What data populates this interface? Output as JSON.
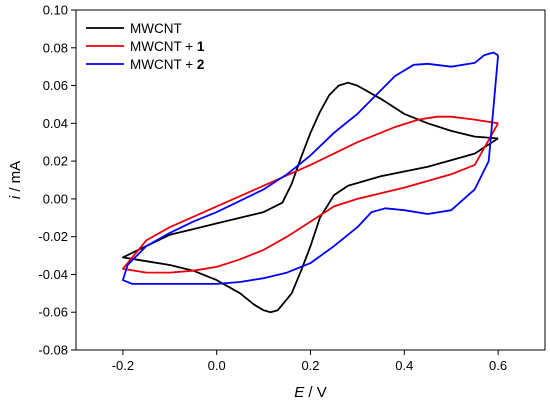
{
  "chart_data": {
    "type": "line",
    "xlim": [
      -0.3,
      0.7
    ],
    "ylim": [
      -0.08,
      0.1
    ],
    "x_ticks": [
      "-0.2",
      "0.0",
      "0.2",
      "0.4",
      "0.6"
    ],
    "x_tick_values": [
      -0.2,
      0.0,
      0.2,
      0.4,
      0.6
    ],
    "y_ticks": [
      "0.10",
      "0.08",
      "0.06",
      "0.04",
      "0.02",
      "0.00",
      "-0.02",
      "-0.04",
      "-0.06",
      "-0.08"
    ],
    "y_tick_values": [
      0.1,
      0.08,
      0.06,
      0.04,
      0.02,
      0.0,
      -0.02,
      -0.04,
      -0.06,
      -0.08
    ],
    "xlabel": {
      "italic": "E",
      "rest": " / V"
    },
    "ylabel": {
      "italic": "i",
      "rest": " / mA"
    },
    "grid": false,
    "legend_position": "top-left",
    "series": [
      {
        "name": "MWCNT",
        "name_plain": "MWCNT",
        "name_bold": "",
        "color": "#000000",
        "points": [
          [
            0.6,
            0.032
          ],
          [
            0.55,
            0.033
          ],
          [
            0.5,
            0.036
          ],
          [
            0.45,
            0.04
          ],
          [
            0.4,
            0.045
          ],
          [
            0.35,
            0.053
          ],
          [
            0.3,
            0.06
          ],
          [
            0.28,
            0.0615
          ],
          [
            0.26,
            0.06
          ],
          [
            0.24,
            0.055
          ],
          [
            0.22,
            0.046
          ],
          [
            0.2,
            0.035
          ],
          [
            0.18,
            0.022
          ],
          [
            0.16,
            0.008
          ],
          [
            0.14,
            -0.002
          ],
          [
            0.1,
            -0.007
          ],
          [
            0.05,
            -0.01
          ],
          [
            0.0,
            -0.013
          ],
          [
            -0.05,
            -0.016
          ],
          [
            -0.1,
            -0.019
          ],
          [
            -0.15,
            -0.025
          ],
          [
            -0.2,
            -0.031
          ],
          [
            -0.15,
            -0.033
          ],
          [
            -0.1,
            -0.035
          ],
          [
            -0.05,
            -0.038
          ],
          [
            0.0,
            -0.043
          ],
          [
            0.05,
            -0.05
          ],
          [
            0.08,
            -0.056
          ],
          [
            0.1,
            -0.059
          ],
          [
            0.115,
            -0.06
          ],
          [
            0.13,
            -0.059
          ],
          [
            0.16,
            -0.05
          ],
          [
            0.18,
            -0.038
          ],
          [
            0.2,
            -0.025
          ],
          [
            0.22,
            -0.01
          ],
          [
            0.25,
            0.002
          ],
          [
            0.28,
            0.007
          ],
          [
            0.35,
            0.012
          ],
          [
            0.45,
            0.017
          ],
          [
            0.55,
            0.024
          ],
          [
            0.6,
            0.032
          ]
        ]
      },
      {
        "name": "MWCNT + 1",
        "name_plain": "MWCNT + ",
        "name_bold": "1",
        "color": "#e8000b",
        "points": [
          [
            0.6,
            0.04
          ],
          [
            0.55,
            0.042
          ],
          [
            0.5,
            0.0435
          ],
          [
            0.47,
            0.0435
          ],
          [
            0.43,
            0.042
          ],
          [
            0.38,
            0.038
          ],
          [
            0.3,
            0.03
          ],
          [
            0.2,
            0.018
          ],
          [
            0.1,
            0.007
          ],
          [
            0.0,
            -0.004
          ],
          [
            -0.1,
            -0.015
          ],
          [
            -0.15,
            -0.022
          ],
          [
            -0.2,
            -0.037
          ],
          [
            -0.15,
            -0.039
          ],
          [
            -0.1,
            -0.039
          ],
          [
            -0.05,
            -0.038
          ],
          [
            0.0,
            -0.036
          ],
          [
            0.05,
            -0.032
          ],
          [
            0.1,
            -0.027
          ],
          [
            0.15,
            -0.02
          ],
          [
            0.2,
            -0.012
          ],
          [
            0.25,
            -0.004
          ],
          [
            0.3,
            0.0
          ],
          [
            0.4,
            0.006
          ],
          [
            0.5,
            0.013
          ],
          [
            0.55,
            0.018
          ],
          [
            0.6,
            0.04
          ]
        ]
      },
      {
        "name": "MWCNT + 2",
        "name_plain": "MWCNT + ",
        "name_bold": "2",
        "color": "#0000ff",
        "points": [
          [
            0.6,
            0.076
          ],
          [
            0.59,
            0.0775
          ],
          [
            0.57,
            0.076
          ],
          [
            0.55,
            0.072
          ],
          [
            0.5,
            0.07
          ],
          [
            0.45,
            0.0715
          ],
          [
            0.42,
            0.071
          ],
          [
            0.38,
            0.065
          ],
          [
            0.34,
            0.055
          ],
          [
            0.3,
            0.045
          ],
          [
            0.25,
            0.035
          ],
          [
            0.2,
            0.023
          ],
          [
            0.15,
            0.013
          ],
          [
            0.1,
            0.005
          ],
          [
            0.05,
            -0.001
          ],
          [
            0.0,
            -0.007
          ],
          [
            -0.05,
            -0.012
          ],
          [
            -0.1,
            -0.018
          ],
          [
            -0.15,
            -0.025
          ],
          [
            -0.19,
            -0.035
          ],
          [
            -0.2,
            -0.043
          ],
          [
            -0.18,
            -0.045
          ],
          [
            -0.1,
            -0.045
          ],
          [
            0.0,
            -0.045
          ],
          [
            0.05,
            -0.044
          ],
          [
            0.1,
            -0.042
          ],
          [
            0.15,
            -0.039
          ],
          [
            0.2,
            -0.034
          ],
          [
            0.25,
            -0.025
          ],
          [
            0.3,
            -0.015
          ],
          [
            0.33,
            -0.007
          ],
          [
            0.36,
            -0.005
          ],
          [
            0.4,
            -0.006
          ],
          [
            0.45,
            -0.008
          ],
          [
            0.5,
            -0.006
          ],
          [
            0.55,
            0.005
          ],
          [
            0.58,
            0.02
          ],
          [
            0.6,
            0.076
          ]
        ]
      }
    ]
  }
}
